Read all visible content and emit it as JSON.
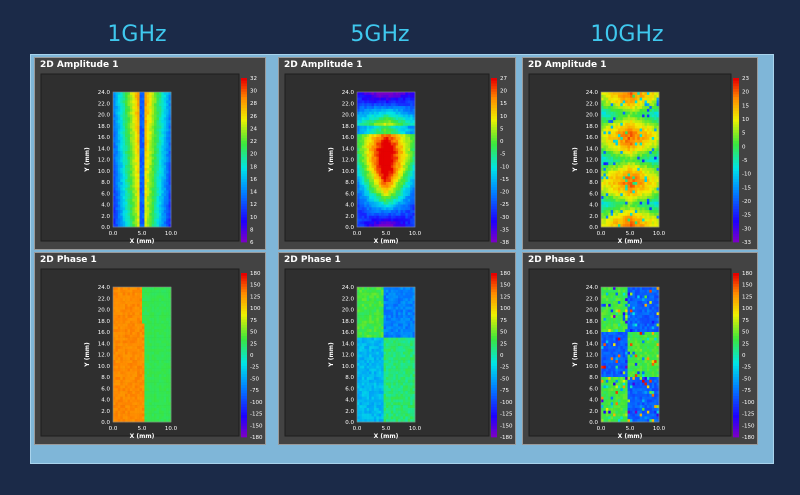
{
  "columns": [
    {
      "title": "1GHz"
    },
    {
      "title": "5GHz"
    },
    {
      "title": "10GHz"
    }
  ],
  "chart_data": [
    {
      "type": "heatmap",
      "title": "2D Amplitude 1",
      "frequency": "1GHz",
      "xlabel": "X (mm)",
      "ylabel": "Y (mm)",
      "xlim": [
        0,
        10
      ],
      "ylim": [
        0,
        24
      ],
      "x_ticks": [
        "0.0",
        "5.0",
        "10.0"
      ],
      "y_ticks": [
        "0.0",
        "2.0",
        "4.0",
        "6.0",
        "8.0",
        "10.0",
        "12.0",
        "14.0",
        "16.0",
        "18.0",
        "20.0",
        "22.0",
        "24.0"
      ],
      "colorbar_ticks": [
        "32",
        "30",
        "28",
        "26",
        "24",
        "22",
        "20",
        "18",
        "16",
        "14",
        "12",
        "10",
        "8",
        "6"
      ],
      "colorbar_range": [
        5,
        32
      ]
    },
    {
      "type": "heatmap",
      "title": "2D Phase 1",
      "frequency": "1GHz",
      "xlabel": "X (mm)",
      "ylabel": "Y (mm)",
      "xlim": [
        0,
        10
      ],
      "ylim": [
        0,
        24
      ],
      "x_ticks": [
        "0.0",
        "5.0",
        "10.0"
      ],
      "y_ticks": [
        "0.0",
        "2.0",
        "4.0",
        "6.0",
        "8.0",
        "10.0",
        "12.0",
        "14.0",
        "16.0",
        "18.0",
        "20.0",
        "22.0",
        "24.0"
      ],
      "colorbar_ticks": [
        "180",
        "150",
        "125",
        "100",
        "75",
        "50",
        "25",
        "0",
        "-25",
        "-50",
        "-75",
        "-100",
        "-125",
        "-150",
        "-180"
      ],
      "colorbar_range": [
        -180,
        180
      ]
    },
    {
      "type": "heatmap",
      "title": "2D Amplitude 1",
      "frequency": "5GHz",
      "xlabel": "X (mm)",
      "ylabel": "Y (mm)",
      "xlim": [
        0,
        10
      ],
      "ylim": [
        0,
        24
      ],
      "x_ticks": [
        "0.0",
        "5.0",
        "10.0"
      ],
      "y_ticks": [
        "0.0",
        "2.0",
        "4.0",
        "6.0",
        "8.0",
        "10.0",
        "12.0",
        "14.0",
        "16.0",
        "18.0",
        "20.0",
        "22.0",
        "24.0"
      ],
      "colorbar_ticks": [
        "27",
        "20",
        "15",
        "10",
        "5",
        "0",
        "-5",
        "-10",
        "-15",
        "-20",
        "-25",
        "-30",
        "-35",
        "-38"
      ],
      "colorbar_range": [
        -38,
        27
      ]
    },
    {
      "type": "heatmap",
      "title": "2D Phase 1",
      "frequency": "5GHz",
      "xlabel": "X (mm)",
      "ylabel": "Y (mm)",
      "xlim": [
        0,
        10
      ],
      "ylim": [
        0,
        24
      ],
      "x_ticks": [
        "0.0",
        "5.0",
        "10.0"
      ],
      "y_ticks": [
        "0.0",
        "2.0",
        "4.0",
        "6.0",
        "8.0",
        "10.0",
        "12.0",
        "14.0",
        "16.0",
        "18.0",
        "20.0",
        "22.0",
        "24.0"
      ],
      "colorbar_ticks": [
        "180",
        "150",
        "125",
        "100",
        "75",
        "50",
        "25",
        "0",
        "-25",
        "-50",
        "-75",
        "-100",
        "-125",
        "-150",
        "-180"
      ],
      "colorbar_range": [
        -180,
        180
      ]
    },
    {
      "type": "heatmap",
      "title": "2D Amplitude 1",
      "frequency": "10GHz",
      "xlabel": "X (mm)",
      "ylabel": "Y (mm)",
      "xlim": [
        0,
        10
      ],
      "ylim": [
        0,
        24
      ],
      "x_ticks": [
        "0.0",
        "5.0",
        "10.0"
      ],
      "y_ticks": [
        "0.0",
        "2.0",
        "4.0",
        "6.0",
        "8.0",
        "10.0",
        "12.0",
        "14.0",
        "16.0",
        "18.0",
        "20.0",
        "22.0",
        "24.0"
      ],
      "colorbar_ticks": [
        "23",
        "20",
        "15",
        "10",
        "5",
        "0",
        "-5",
        "-10",
        "-15",
        "-20",
        "-25",
        "-30",
        "-33"
      ],
      "colorbar_range": [
        -33,
        23
      ]
    },
    {
      "type": "heatmap",
      "title": "2D Phase 1",
      "frequency": "10GHz",
      "xlabel": "X (mm)",
      "ylabel": "Y (mm)",
      "xlim": [
        0,
        10
      ],
      "ylim": [
        0,
        24
      ],
      "x_ticks": [
        "0.0",
        "5.0",
        "10.0"
      ],
      "y_ticks": [
        "0.0",
        "2.0",
        "4.0",
        "6.0",
        "8.0",
        "10.0",
        "12.0",
        "14.0",
        "16.0",
        "18.0",
        "20.0",
        "22.0",
        "24.0"
      ],
      "colorbar_ticks": [
        "180",
        "150",
        "125",
        "100",
        "75",
        "50",
        "25",
        "0",
        "-25",
        "-50",
        "-75",
        "-100",
        "-125",
        "-150",
        "-180"
      ],
      "colorbar_range": [
        -180,
        180
      ]
    }
  ]
}
